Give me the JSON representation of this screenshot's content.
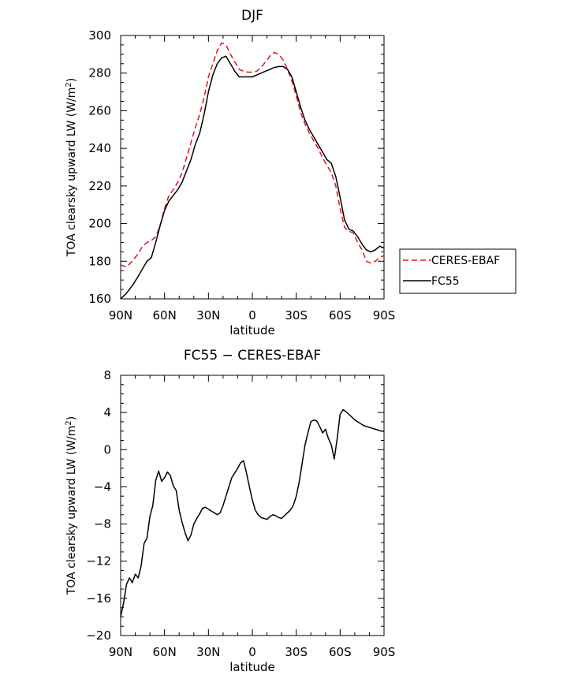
{
  "chart_data": [
    {
      "type": "line",
      "title": "DJF",
      "xlabel": "latitude",
      "ylabel_main": "TOA clearsky upward LW (W/m",
      "ylabel_sup": "2",
      "ylabel_close": ")",
      "xlim": [
        -90,
        90
      ],
      "ylim": [
        160,
        300
      ],
      "x_ticks": [
        {
          "value": -90,
          "label": "90N"
        },
        {
          "value": -60,
          "label": "60N"
        },
        {
          "value": -30,
          "label": "30N"
        },
        {
          "value": 0,
          "label": "0"
        },
        {
          "value": 30,
          "label": "30S"
        },
        {
          "value": 60,
          "label": "60S"
        },
        {
          "value": 90,
          "label": "90S"
        }
      ],
      "y_ticks": [
        {
          "value": 160,
          "label": "160"
        },
        {
          "value": 180,
          "label": "180"
        },
        {
          "value": 200,
          "label": "200"
        },
        {
          "value": 220,
          "label": "220"
        },
        {
          "value": 240,
          "label": "240"
        },
        {
          "value": 260,
          "label": "260"
        },
        {
          "value": 280,
          "label": "280"
        },
        {
          "value": 300,
          "label": "300"
        }
      ],
      "legend_placement": "right",
      "series": [
        {
          "name": "CERES-EBAF",
          "color": "#e8101a",
          "dash": "dashed",
          "x": [
            -90,
            -86,
            -82,
            -78,
            -75,
            -72,
            -69,
            -66,
            -63,
            -60,
            -57,
            -54,
            -51,
            -48,
            -45,
            -42,
            -39,
            -36,
            -33,
            -30,
            -27,
            -24,
            -21,
            -18,
            -15,
            -12,
            -9,
            -6,
            -3,
            0,
            3,
            6,
            9,
            12,
            15,
            18,
            21,
            24,
            27,
            30,
            33,
            36,
            39,
            42,
            45,
            48,
            51,
            54,
            57,
            60,
            63,
            66,
            69,
            72,
            75,
            78,
            81,
            84,
            87,
            90
          ],
          "y": [
            178,
            177,
            180,
            184,
            188,
            190,
            191,
            193,
            199,
            208,
            215,
            218,
            222,
            227,
            235,
            243,
            251,
            258,
            267,
            278,
            285,
            292,
            296,
            295,
            290,
            286,
            282,
            281,
            280.5,
            280.5,
            281,
            283,
            286,
            289,
            291,
            290,
            287,
            282,
            276,
            268,
            259,
            253,
            248,
            244,
            240,
            235,
            231,
            227,
            220,
            208,
            198,
            196,
            195,
            190,
            186,
            180,
            179,
            180,
            182,
            183
          ]
        },
        {
          "name": "FC55",
          "color": "#000000",
          "dash": "solid",
          "x": [
            -90,
            -86,
            -82,
            -78,
            -75,
            -72,
            -69,
            -66,
            -63,
            -60,
            -57,
            -54,
            -51,
            -48,
            -45,
            -42,
            -39,
            -36,
            -33,
            -30,
            -27,
            -24,
            -21,
            -18,
            -15,
            -12,
            -9,
            -6,
            -3,
            0,
            3,
            6,
            9,
            12,
            15,
            18,
            21,
            24,
            27,
            30,
            33,
            36,
            39,
            42,
            45,
            48,
            51,
            54,
            57,
            60,
            63,
            66,
            69,
            72,
            75,
            78,
            81,
            84,
            87,
            90
          ],
          "y": [
            160,
            163,
            167,
            172,
            176,
            180,
            182,
            190,
            199,
            207,
            212,
            215,
            218,
            222,
            228,
            234,
            242,
            248,
            258,
            270,
            279,
            285,
            288,
            289,
            285,
            281,
            278,
            278,
            278,
            278,
            279,
            280,
            281,
            282,
            283,
            283.5,
            283.5,
            282,
            278,
            270,
            262,
            255,
            250,
            246,
            242,
            238,
            234,
            232,
            225,
            214,
            202,
            197,
            196,
            193,
            189,
            186,
            185,
            186,
            188,
            187
          ]
        }
      ]
    },
    {
      "type": "line",
      "title": "FC55 − CERES-EBAF",
      "xlabel": "latitude",
      "ylabel_main": "TOA clearsky upward LW (W/m",
      "ylabel_sup": "2",
      "ylabel_close": ")",
      "xlim": [
        -90,
        90
      ],
      "ylim": [
        -20,
        8
      ],
      "x_ticks": [
        {
          "value": -90,
          "label": "90N"
        },
        {
          "value": -60,
          "label": "60N"
        },
        {
          "value": -30,
          "label": "30N"
        },
        {
          "value": 0,
          "label": "0"
        },
        {
          "value": 30,
          "label": "30S"
        },
        {
          "value": 60,
          "label": "60S"
        },
        {
          "value": 90,
          "label": "90S"
        }
      ],
      "y_ticks": [
        {
          "value": -20,
          "label": "−20"
        },
        {
          "value": -16,
          "label": "−16"
        },
        {
          "value": -12,
          "label": "−12"
        },
        {
          "value": -8,
          "label": "−8"
        },
        {
          "value": -4,
          "label": "−4"
        },
        {
          "value": 0,
          "label": "0"
        },
        {
          "value": 4,
          "label": "4"
        },
        {
          "value": 8,
          "label": "8"
        }
      ],
      "series": [
        {
          "color": "#000000",
          "dash": "solid",
          "x": [
            -90,
            -88,
            -86,
            -84,
            -82,
            -80,
            -78,
            -76,
            -74,
            -72,
            -70,
            -68,
            -66,
            -64,
            -62,
            -60,
            -58,
            -56,
            -54,
            -52,
            -50,
            -48,
            -46,
            -44,
            -42,
            -40,
            -38,
            -36,
            -34,
            -32,
            -30,
            -28,
            -26,
            -24,
            -22,
            -20,
            -18,
            -16,
            -14,
            -12,
            -10,
            -8,
            -6,
            -4,
            -2,
            0,
            2,
            4,
            6,
            8,
            10,
            12,
            14,
            16,
            18,
            20,
            22,
            24,
            26,
            28,
            30,
            32,
            34,
            36,
            38,
            40,
            42,
            44,
            46,
            48,
            50,
            52,
            54,
            56,
            58,
            60,
            62,
            64,
            66,
            68,
            70,
            72,
            74,
            76,
            78,
            80,
            82,
            84,
            86,
            88,
            90
          ],
          "y": [
            -18,
            -16.5,
            -14.5,
            -13.8,
            -14.3,
            -13.4,
            -13.8,
            -12.5,
            -10.1,
            -9.5,
            -7.2,
            -6.0,
            -3.3,
            -2.3,
            -3.4,
            -3.0,
            -2.4,
            -2.8,
            -3.9,
            -4.4,
            -6.5,
            -7.8,
            -8.9,
            -9.8,
            -9.2,
            -8.0,
            -7.4,
            -6.9,
            -6.3,
            -6.2,
            -6.4,
            -6.6,
            -6.8,
            -7.0,
            -6.8,
            -6.0,
            -5.0,
            -4.0,
            -3.0,
            -2.5,
            -2.0,
            -1.4,
            -1.2,
            -2.5,
            -4.0,
            -5.4,
            -6.5,
            -7.0,
            -7.3,
            -7.4,
            -7.5,
            -7.2,
            -7.0,
            -7.1,
            -7.3,
            -7.4,
            -7.1,
            -6.8,
            -6.5,
            -6.0,
            -5.0,
            -3.5,
            -1.5,
            0.5,
            1.8,
            3.0,
            3.2,
            3.1,
            2.5,
            1.8,
            2.2,
            1.2,
            0.5,
            -1.0,
            1.2,
            3.8,
            4.3,
            4.1,
            3.8,
            3.5,
            3.2,
            3.0,
            2.8,
            2.6,
            2.5,
            2.4,
            2.3,
            2.2,
            2.1,
            2.0,
            2.0
          ]
        }
      ]
    }
  ]
}
